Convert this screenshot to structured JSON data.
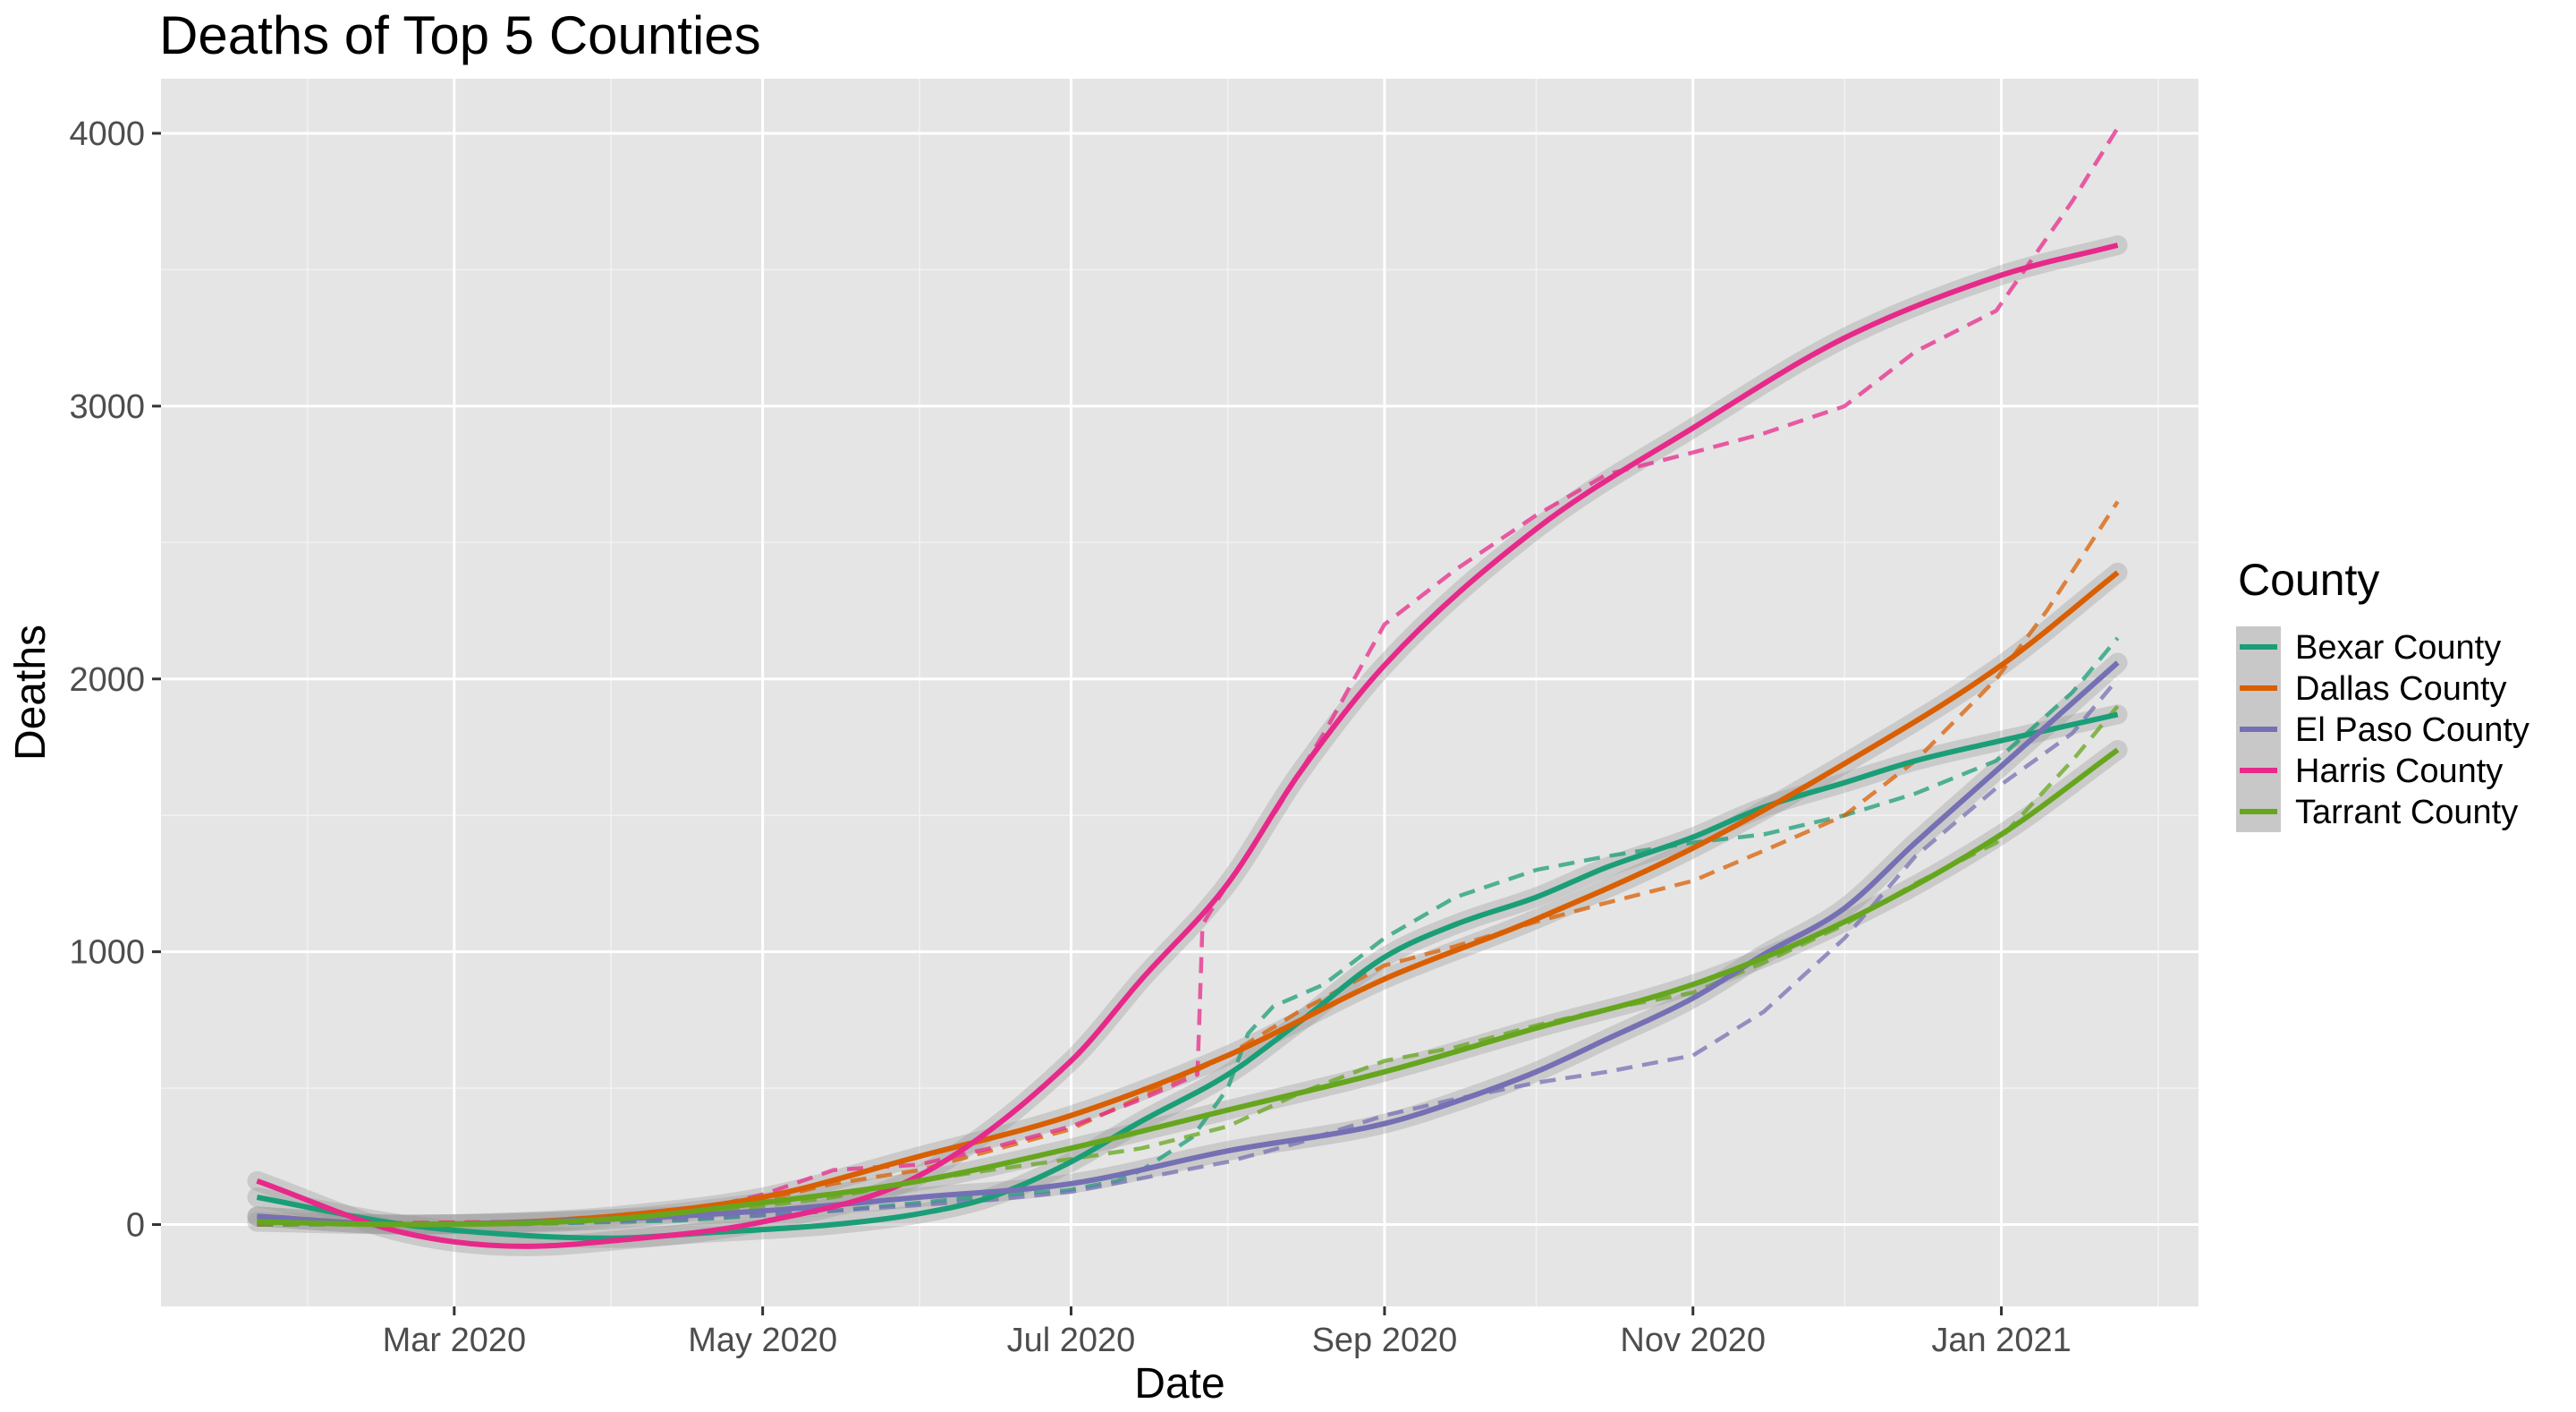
{
  "chart_data": {
    "type": "line",
    "title": "Deaths of Top 5 Counties",
    "xlabel": "Date",
    "ylabel": "Deaths",
    "x_axis": {
      "type": "date",
      "range": [
        "2020-01-03",
        "2021-02-09"
      ],
      "ticks": [
        {
          "date": "2020-03-01",
          "label": "Mar 2020"
        },
        {
          "date": "2020-05-01",
          "label": "May 2020"
        },
        {
          "date": "2020-07-01",
          "label": "Jul 2020"
        },
        {
          "date": "2020-09-01",
          "label": "Sep 2020"
        },
        {
          "date": "2020-11-01",
          "label": "Nov 2020"
        },
        {
          "date": "2021-01-01",
          "label": "Jan 2021"
        }
      ],
      "minor_ticks": [
        "2020-02-01",
        "2020-04-01",
        "2020-06-01",
        "2020-08-01",
        "2020-10-01",
        "2020-12-01",
        "2021-02-01"
      ]
    },
    "y_axis": {
      "range": [
        -300,
        4200
      ],
      "ticks": [
        0,
        1000,
        2000,
        3000,
        4000
      ],
      "minor_ticks": [
        500,
        1500,
        2500,
        3500
      ]
    },
    "grid": true,
    "legend": {
      "title": "County",
      "position": "right"
    },
    "series": [
      {
        "name": "Bexar County",
        "color": "#1b9e77",
        "observed": [
          [
            "2020-01-22",
            0
          ],
          [
            "2020-03-15",
            2
          ],
          [
            "2020-04-15",
            15
          ],
          [
            "2020-05-15",
            50
          ],
          [
            "2020-06-01",
            80
          ],
          [
            "2020-06-15",
            105
          ],
          [
            "2020-06-30",
            125
          ],
          [
            "2020-07-10",
            160
          ],
          [
            "2020-07-15",
            200
          ],
          [
            "2020-07-25",
            320
          ],
          [
            "2020-08-01",
            500
          ],
          [
            "2020-08-05",
            700
          ],
          [
            "2020-08-10",
            800
          ],
          [
            "2020-08-20",
            880
          ],
          [
            "2020-09-01",
            1050
          ],
          [
            "2020-09-15",
            1200
          ],
          [
            "2020-10-01",
            1300
          ],
          [
            "2020-10-15",
            1350
          ],
          [
            "2020-11-01",
            1400
          ],
          [
            "2020-11-15",
            1430
          ],
          [
            "2020-12-01",
            1500
          ],
          [
            "2020-12-15",
            1580
          ],
          [
            "2020-12-31",
            1700
          ],
          [
            "2021-01-15",
            1950
          ],
          [
            "2021-01-24",
            2150
          ]
        ],
        "smooth": [
          [
            "2020-01-22",
            100
          ],
          [
            "2020-02-20",
            0
          ],
          [
            "2020-03-15",
            -40
          ],
          [
            "2020-04-01",
            -50
          ],
          [
            "2020-04-20",
            -30
          ],
          [
            "2020-05-15",
            0
          ],
          [
            "2020-06-01",
            40
          ],
          [
            "2020-06-15",
            100
          ],
          [
            "2020-07-01",
            230
          ],
          [
            "2020-07-15",
            380
          ],
          [
            "2020-08-01",
            550
          ],
          [
            "2020-08-15",
            740
          ],
          [
            "2020-09-01",
            980
          ],
          [
            "2020-09-15",
            1100
          ],
          [
            "2020-10-01",
            1200
          ],
          [
            "2020-10-15",
            1310
          ],
          [
            "2020-11-01",
            1420
          ],
          [
            "2020-11-15",
            1530
          ],
          [
            "2020-12-01",
            1620
          ],
          [
            "2020-12-15",
            1700
          ],
          [
            "2020-12-31",
            1770
          ],
          [
            "2021-01-24",
            1870
          ]
        ]
      },
      {
        "name": "Dallas County",
        "color": "#d95f02",
        "observed": [
          [
            "2020-01-22",
            0
          ],
          [
            "2020-03-15",
            10
          ],
          [
            "2020-04-15",
            50
          ],
          [
            "2020-05-01",
            90
          ],
          [
            "2020-05-15",
            150
          ],
          [
            "2020-06-01",
            200
          ],
          [
            "2020-06-15",
            270
          ],
          [
            "2020-07-01",
            350
          ],
          [
            "2020-07-15",
            470
          ],
          [
            "2020-08-01",
            620
          ],
          [
            "2020-08-15",
            780
          ],
          [
            "2020-09-01",
            950
          ],
          [
            "2020-09-15",
            1020
          ],
          [
            "2020-10-01",
            1110
          ],
          [
            "2020-10-15",
            1180
          ],
          [
            "2020-11-01",
            1260
          ],
          [
            "2020-11-15",
            1370
          ],
          [
            "2020-12-01",
            1500
          ],
          [
            "2020-12-15",
            1700
          ],
          [
            "2020-12-31",
            2000
          ],
          [
            "2021-01-10",
            2250
          ],
          [
            "2021-01-24",
            2650
          ]
        ],
        "smooth": [
          [
            "2020-01-22",
            30
          ],
          [
            "2020-02-20",
            0
          ],
          [
            "2020-03-15",
            10
          ],
          [
            "2020-04-01",
            30
          ],
          [
            "2020-05-01",
            100
          ],
          [
            "2020-06-01",
            250
          ],
          [
            "2020-07-01",
            400
          ],
          [
            "2020-08-01",
            620
          ],
          [
            "2020-09-01",
            900
          ],
          [
            "2020-10-01",
            1120
          ],
          [
            "2020-11-01",
            1380
          ],
          [
            "2020-12-01",
            1690
          ],
          [
            "2021-01-01",
            2050
          ],
          [
            "2021-01-24",
            2390
          ]
        ]
      },
      {
        "name": "El Paso County",
        "color": "#7570b3",
        "observed": [
          [
            "2020-01-22",
            0
          ],
          [
            "2020-03-15",
            2
          ],
          [
            "2020-04-15",
            20
          ],
          [
            "2020-05-15",
            50
          ],
          [
            "2020-06-15",
            90
          ],
          [
            "2020-07-01",
            120
          ],
          [
            "2020-07-15",
            170
          ],
          [
            "2020-08-01",
            230
          ],
          [
            "2020-08-15",
            300
          ],
          [
            "2020-09-01",
            400
          ],
          [
            "2020-09-15",
            460
          ],
          [
            "2020-10-01",
            520
          ],
          [
            "2020-10-15",
            560
          ],
          [
            "2020-11-01",
            620
          ],
          [
            "2020-11-15",
            780
          ],
          [
            "2020-12-01",
            1050
          ],
          [
            "2020-12-15",
            1350
          ],
          [
            "2020-12-31",
            1600
          ],
          [
            "2021-01-15",
            1800
          ],
          [
            "2021-01-24",
            2000
          ]
        ],
        "smooth": [
          [
            "2020-01-22",
            30
          ],
          [
            "2020-02-20",
            0
          ],
          [
            "2020-04-01",
            20
          ],
          [
            "2020-05-01",
            50
          ],
          [
            "2020-06-01",
            100
          ],
          [
            "2020-07-01",
            150
          ],
          [
            "2020-08-01",
            270
          ],
          [
            "2020-09-01",
            370
          ],
          [
            "2020-09-15",
            450
          ],
          [
            "2020-10-01",
            560
          ],
          [
            "2020-10-15",
            680
          ],
          [
            "2020-11-01",
            830
          ],
          [
            "2020-11-15",
            990
          ],
          [
            "2020-12-01",
            1160
          ],
          [
            "2020-12-15",
            1400
          ],
          [
            "2021-01-01",
            1680
          ],
          [
            "2021-01-24",
            2060
          ]
        ]
      },
      {
        "name": "Harris County",
        "color": "#e7298a",
        "observed": [
          [
            "2020-01-22",
            0
          ],
          [
            "2020-03-15",
            10
          ],
          [
            "2020-04-15",
            40
          ],
          [
            "2020-05-01",
            110
          ],
          [
            "2020-05-15",
            200
          ],
          [
            "2020-06-01",
            220
          ],
          [
            "2020-06-15",
            280
          ],
          [
            "2020-07-01",
            360
          ],
          [
            "2020-07-15",
            460
          ],
          [
            "2020-07-26",
            550
          ],
          [
            "2020-07-27",
            1100
          ],
          [
            "2020-08-01",
            1250
          ],
          [
            "2020-08-10",
            1500
          ],
          [
            "2020-08-20",
            1800
          ],
          [
            "2020-09-01",
            2200
          ],
          [
            "2020-09-15",
            2400
          ],
          [
            "2020-10-01",
            2600
          ],
          [
            "2020-10-15",
            2750
          ],
          [
            "2020-11-01",
            2830
          ],
          [
            "2020-11-15",
            2900
          ],
          [
            "2020-12-01",
            3000
          ],
          [
            "2020-12-15",
            3200
          ],
          [
            "2020-12-31",
            3350
          ],
          [
            "2021-01-15",
            3750
          ],
          [
            "2021-01-24",
            4020
          ]
        ],
        "smooth": [
          [
            "2020-01-22",
            160
          ],
          [
            "2020-02-20",
            -30
          ],
          [
            "2020-03-15",
            -80
          ],
          [
            "2020-04-01",
            -60
          ],
          [
            "2020-05-01",
            10
          ],
          [
            "2020-06-01",
            180
          ],
          [
            "2020-07-01",
            600
          ],
          [
            "2020-07-15",
            900
          ],
          [
            "2020-08-01",
            1250
          ],
          [
            "2020-08-15",
            1650
          ],
          [
            "2020-09-01",
            2050
          ],
          [
            "2020-10-01",
            2550
          ],
          [
            "2020-11-01",
            2920
          ],
          [
            "2020-12-01",
            3250
          ],
          [
            "2021-01-01",
            3480
          ],
          [
            "2021-01-24",
            3590
          ]
        ]
      },
      {
        "name": "Tarrant County",
        "color": "#66a61e",
        "observed": [
          [
            "2020-01-22",
            0
          ],
          [
            "2020-03-15",
            2
          ],
          [
            "2020-04-15",
            30
          ],
          [
            "2020-05-15",
            100
          ],
          [
            "2020-06-01",
            160
          ],
          [
            "2020-06-15",
            200
          ],
          [
            "2020-07-01",
            240
          ],
          [
            "2020-07-15",
            280
          ],
          [
            "2020-08-01",
            360
          ],
          [
            "2020-08-15",
            480
          ],
          [
            "2020-09-01",
            600
          ],
          [
            "2020-09-15",
            650
          ],
          [
            "2020-10-01",
            730
          ],
          [
            "2020-10-15",
            790
          ],
          [
            "2020-11-01",
            850
          ],
          [
            "2020-11-15",
            960
          ],
          [
            "2020-12-01",
            1100
          ],
          [
            "2020-12-15",
            1250
          ],
          [
            "2020-12-31",
            1400
          ],
          [
            "2021-01-15",
            1700
          ],
          [
            "2021-01-24",
            1900
          ]
        ],
        "smooth": [
          [
            "2020-01-22",
            10
          ],
          [
            "2020-02-20",
            0
          ],
          [
            "2020-04-01",
            20
          ],
          [
            "2020-05-01",
            80
          ],
          [
            "2020-06-01",
            160
          ],
          [
            "2020-07-01",
            280
          ],
          [
            "2020-08-01",
            420
          ],
          [
            "2020-09-01",
            560
          ],
          [
            "2020-10-01",
            720
          ],
          [
            "2020-11-01",
            880
          ],
          [
            "2020-12-01",
            1110
          ],
          [
            "2021-01-01",
            1430
          ],
          [
            "2021-01-24",
            1740
          ]
        ]
      }
    ]
  }
}
